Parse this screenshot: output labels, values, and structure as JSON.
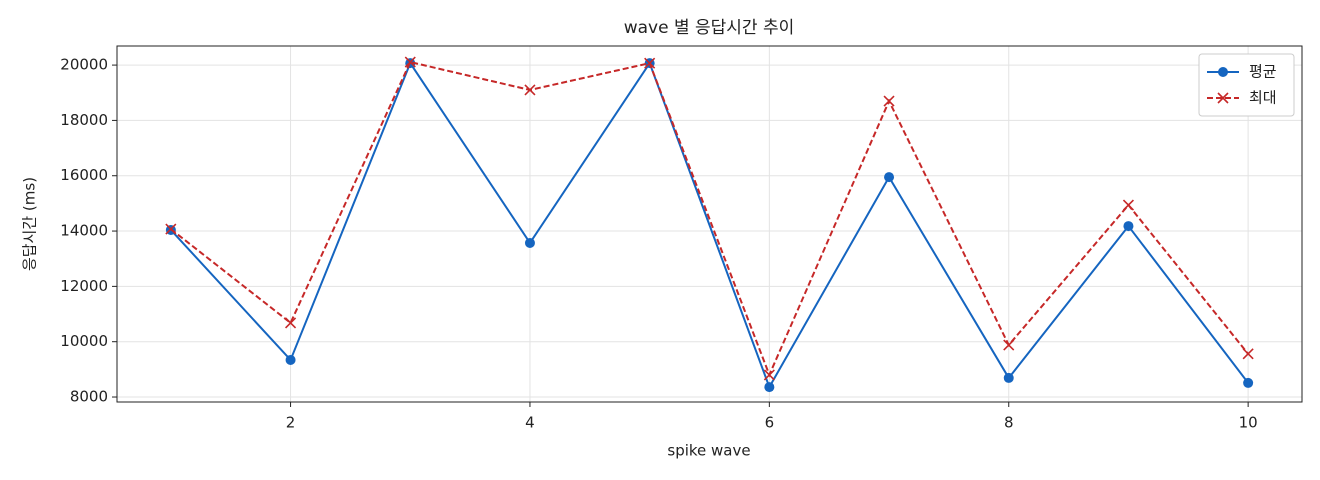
{
  "chart_data": {
    "type": "line",
    "title": "wave 별 응답시간 추이",
    "x_label": "spike wave",
    "y_label": "응답시간 (ms)",
    "x": [
      1,
      2,
      3,
      4,
      5,
      6,
      7,
      8,
      9,
      10
    ],
    "series": [
      {
        "name": "평균",
        "color": "#1565c0",
        "marker": "o",
        "dash": "solid",
        "values": [
          14040,
          9340,
          20070,
          13570,
          20070,
          8360,
          15950,
          8690,
          14180,
          8510
        ]
      },
      {
        "name": "최대",
        "color": "#c62828",
        "marker": "x",
        "dash": "dashed",
        "values": [
          14070,
          10680,
          20110,
          19100,
          20070,
          8800,
          18700,
          9880,
          14940,
          9560
        ]
      }
    ],
    "xlim": [
      0.55,
      10.45
    ],
    "ylim": [
      7820,
      20690
    ],
    "xticks": [
      2,
      4,
      6,
      8,
      10
    ],
    "yticks": [
      8000,
      10000,
      12000,
      14000,
      16000,
      18000,
      20000
    ],
    "grid": true,
    "legend": "upper right"
  }
}
